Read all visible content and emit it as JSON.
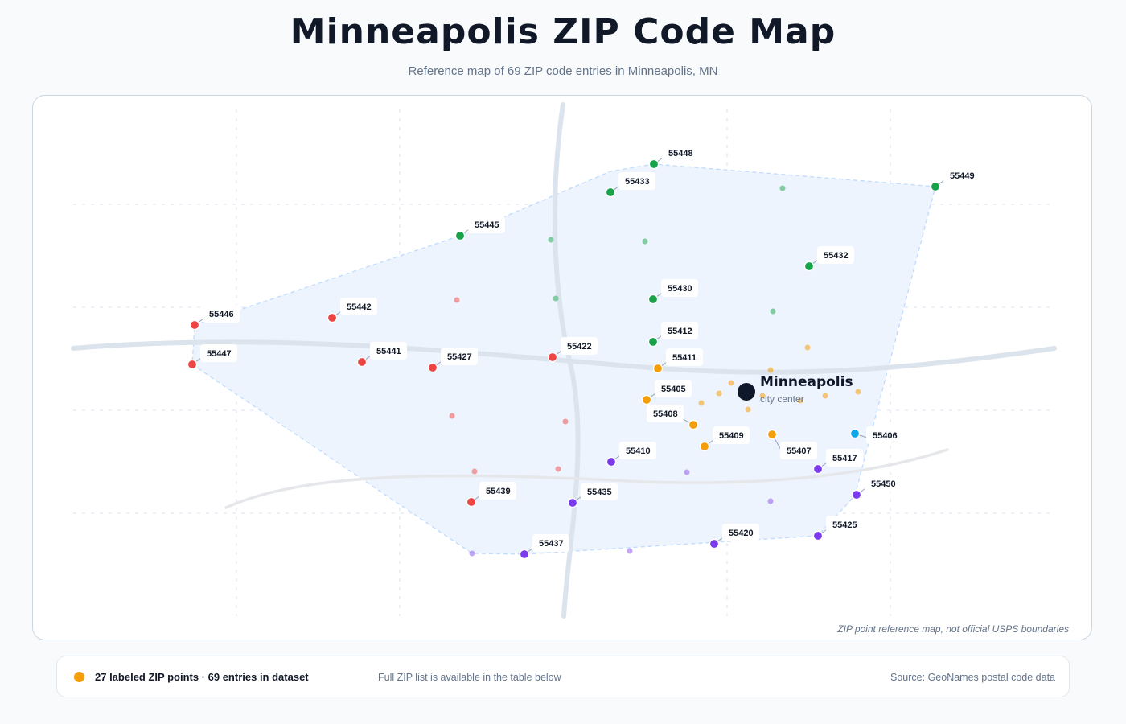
{
  "header": {
    "title": "Minneapolis ZIP Code Map",
    "subtitle": "Reference map of 69 ZIP code entries in Minneapolis, MN"
  },
  "map": {
    "footnote": "ZIP point reference map, not official USPS boundaries",
    "city": {
      "name": "Minneapolis",
      "caption": "city center"
    },
    "colors": {
      "green": "#16a34a",
      "red": "#ef4444",
      "orange": "#f59e0b",
      "purple": "#7c3aed",
      "blue": "#0ea5e9",
      "center": "#0f172a",
      "area_fill": "#eef4fd",
      "area_stroke": "#bfdbfe",
      "road": "#dbe3ec",
      "grid": "#e2e8f0"
    },
    "labeled_zips": [
      {
        "zip": "55448",
        "group": "green"
      },
      {
        "zip": "55433",
        "group": "green"
      },
      {
        "zip": "55449",
        "group": "green"
      },
      {
        "zip": "55445",
        "group": "green"
      },
      {
        "zip": "55432",
        "group": "green"
      },
      {
        "zip": "55430",
        "group": "green"
      },
      {
        "zip": "55412",
        "group": "green"
      },
      {
        "zip": "55446",
        "group": "red"
      },
      {
        "zip": "55442",
        "group": "red"
      },
      {
        "zip": "55447",
        "group": "red"
      },
      {
        "zip": "55441",
        "group": "red"
      },
      {
        "zip": "55427",
        "group": "red"
      },
      {
        "zip": "55422",
        "group": "red"
      },
      {
        "zip": "55439",
        "group": "red"
      },
      {
        "zip": "55411",
        "group": "orange"
      },
      {
        "zip": "55405",
        "group": "orange"
      },
      {
        "zip": "55408",
        "group": "orange"
      },
      {
        "zip": "55409",
        "group": "orange"
      },
      {
        "zip": "55407",
        "group": "orange"
      },
      {
        "zip": "55406",
        "group": "blue"
      },
      {
        "zip": "55410",
        "group": "purple"
      },
      {
        "zip": "55417",
        "group": "purple"
      },
      {
        "zip": "55450",
        "group": "purple"
      },
      {
        "zip": "55435",
        "group": "purple"
      },
      {
        "zip": "55425",
        "group": "purple"
      },
      {
        "zip": "55420",
        "group": "purple"
      },
      {
        "zip": "55437",
        "group": "purple"
      }
    ]
  },
  "legend": {
    "main": "27 labeled ZIP points · 69 entries in dataset",
    "note": "Full ZIP list is available in the table below",
    "source": "Source: GeoNames postal code data"
  }
}
